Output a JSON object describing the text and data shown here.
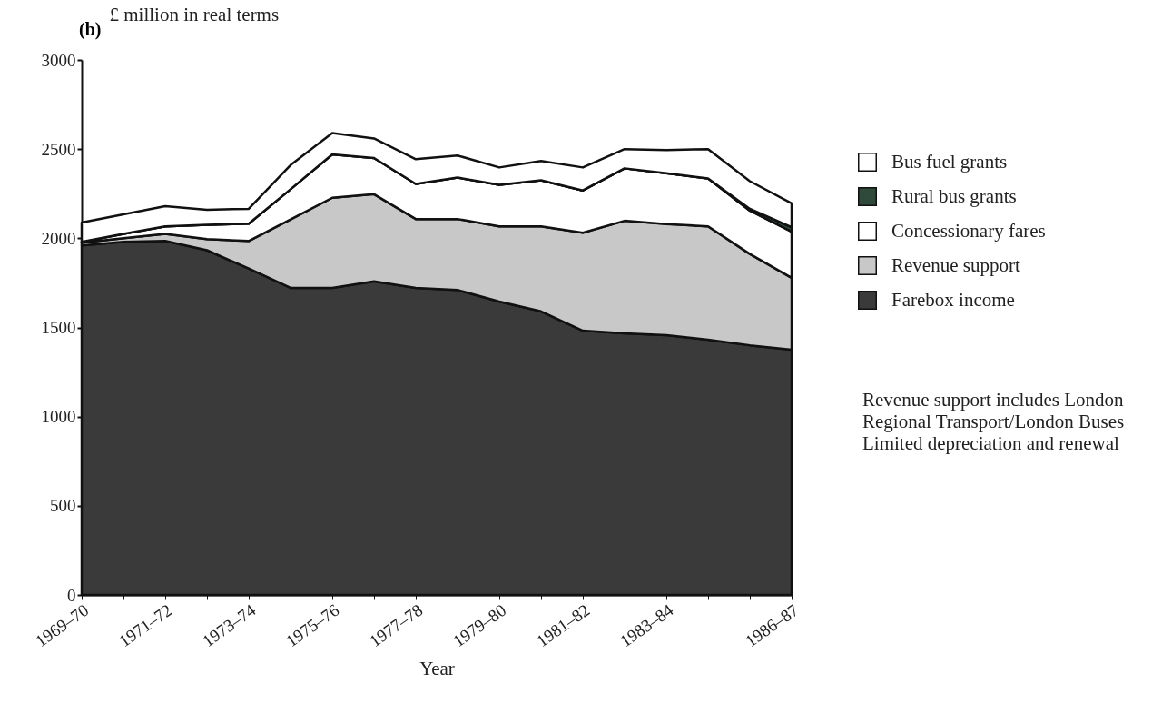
{
  "chart_data": {
    "type": "area",
    "title": "(b)",
    "ylabel": "£ million in real terms",
    "xlabel": "Year",
    "stacked": true,
    "categories": [
      "1969–70",
      null,
      "1971–72",
      null,
      "1973–74",
      null,
      "1975–76",
      null,
      "1977–78",
      null,
      "1979–80",
      null,
      "1981–82",
      null,
      "1983–84",
      null,
      null,
      "1986–87"
    ],
    "series": [
      {
        "name": "Farebox income",
        "color": "#3a3a3a",
        "values": [
          1960,
          1980,
          1985,
          1933,
          1830,
          1722,
          1722,
          1758,
          1722,
          1710,
          1645,
          1590,
          1482,
          1467,
          1457,
          1431,
          1400,
          1375
        ]
      },
      {
        "name": "Revenue support",
        "color": "#c8c8c8",
        "values": [
          15,
          20,
          40,
          62,
          155,
          383,
          505,
          489,
          386,
          398,
          422,
          477,
          549,
          631,
          623,
          636,
          512,
          403
        ]
      },
      {
        "name": "Concessionary fares",
        "color": "#ffffff",
        "values": [
          5,
          25,
          42,
          80,
          97,
          170,
          243,
          203,
          197,
          232,
          233,
          258,
          237,
          294,
          285,
          268,
          243,
          259
        ]
      },
      {
        "name": "Rural bus grants",
        "color": "#2f4a3a",
        "values": [
          0,
          0,
          0,
          0,
          0,
          0,
          0,
          0,
          0,
          0,
          0,
          0,
          0,
          0,
          0,
          0,
          10,
          25
        ]
      },
      {
        "name": "Bus fuel grants",
        "color": "#ffffff",
        "values": [
          108,
          109,
          113,
          85,
          83,
          135,
          120,
          110,
          138,
          124,
          97,
          108,
          129,
          108,
          130,
          165,
          155,
          134
        ]
      }
    ],
    "ylim": [
      0,
      3000
    ],
    "yticks": [
      0,
      500,
      1000,
      1500,
      2000,
      2500,
      3000
    ],
    "grid": false,
    "legend": "right",
    "annotations": [
      "Revenue support includes London Regional Transport/London Buses Limited depreciation and renewal"
    ]
  }
}
